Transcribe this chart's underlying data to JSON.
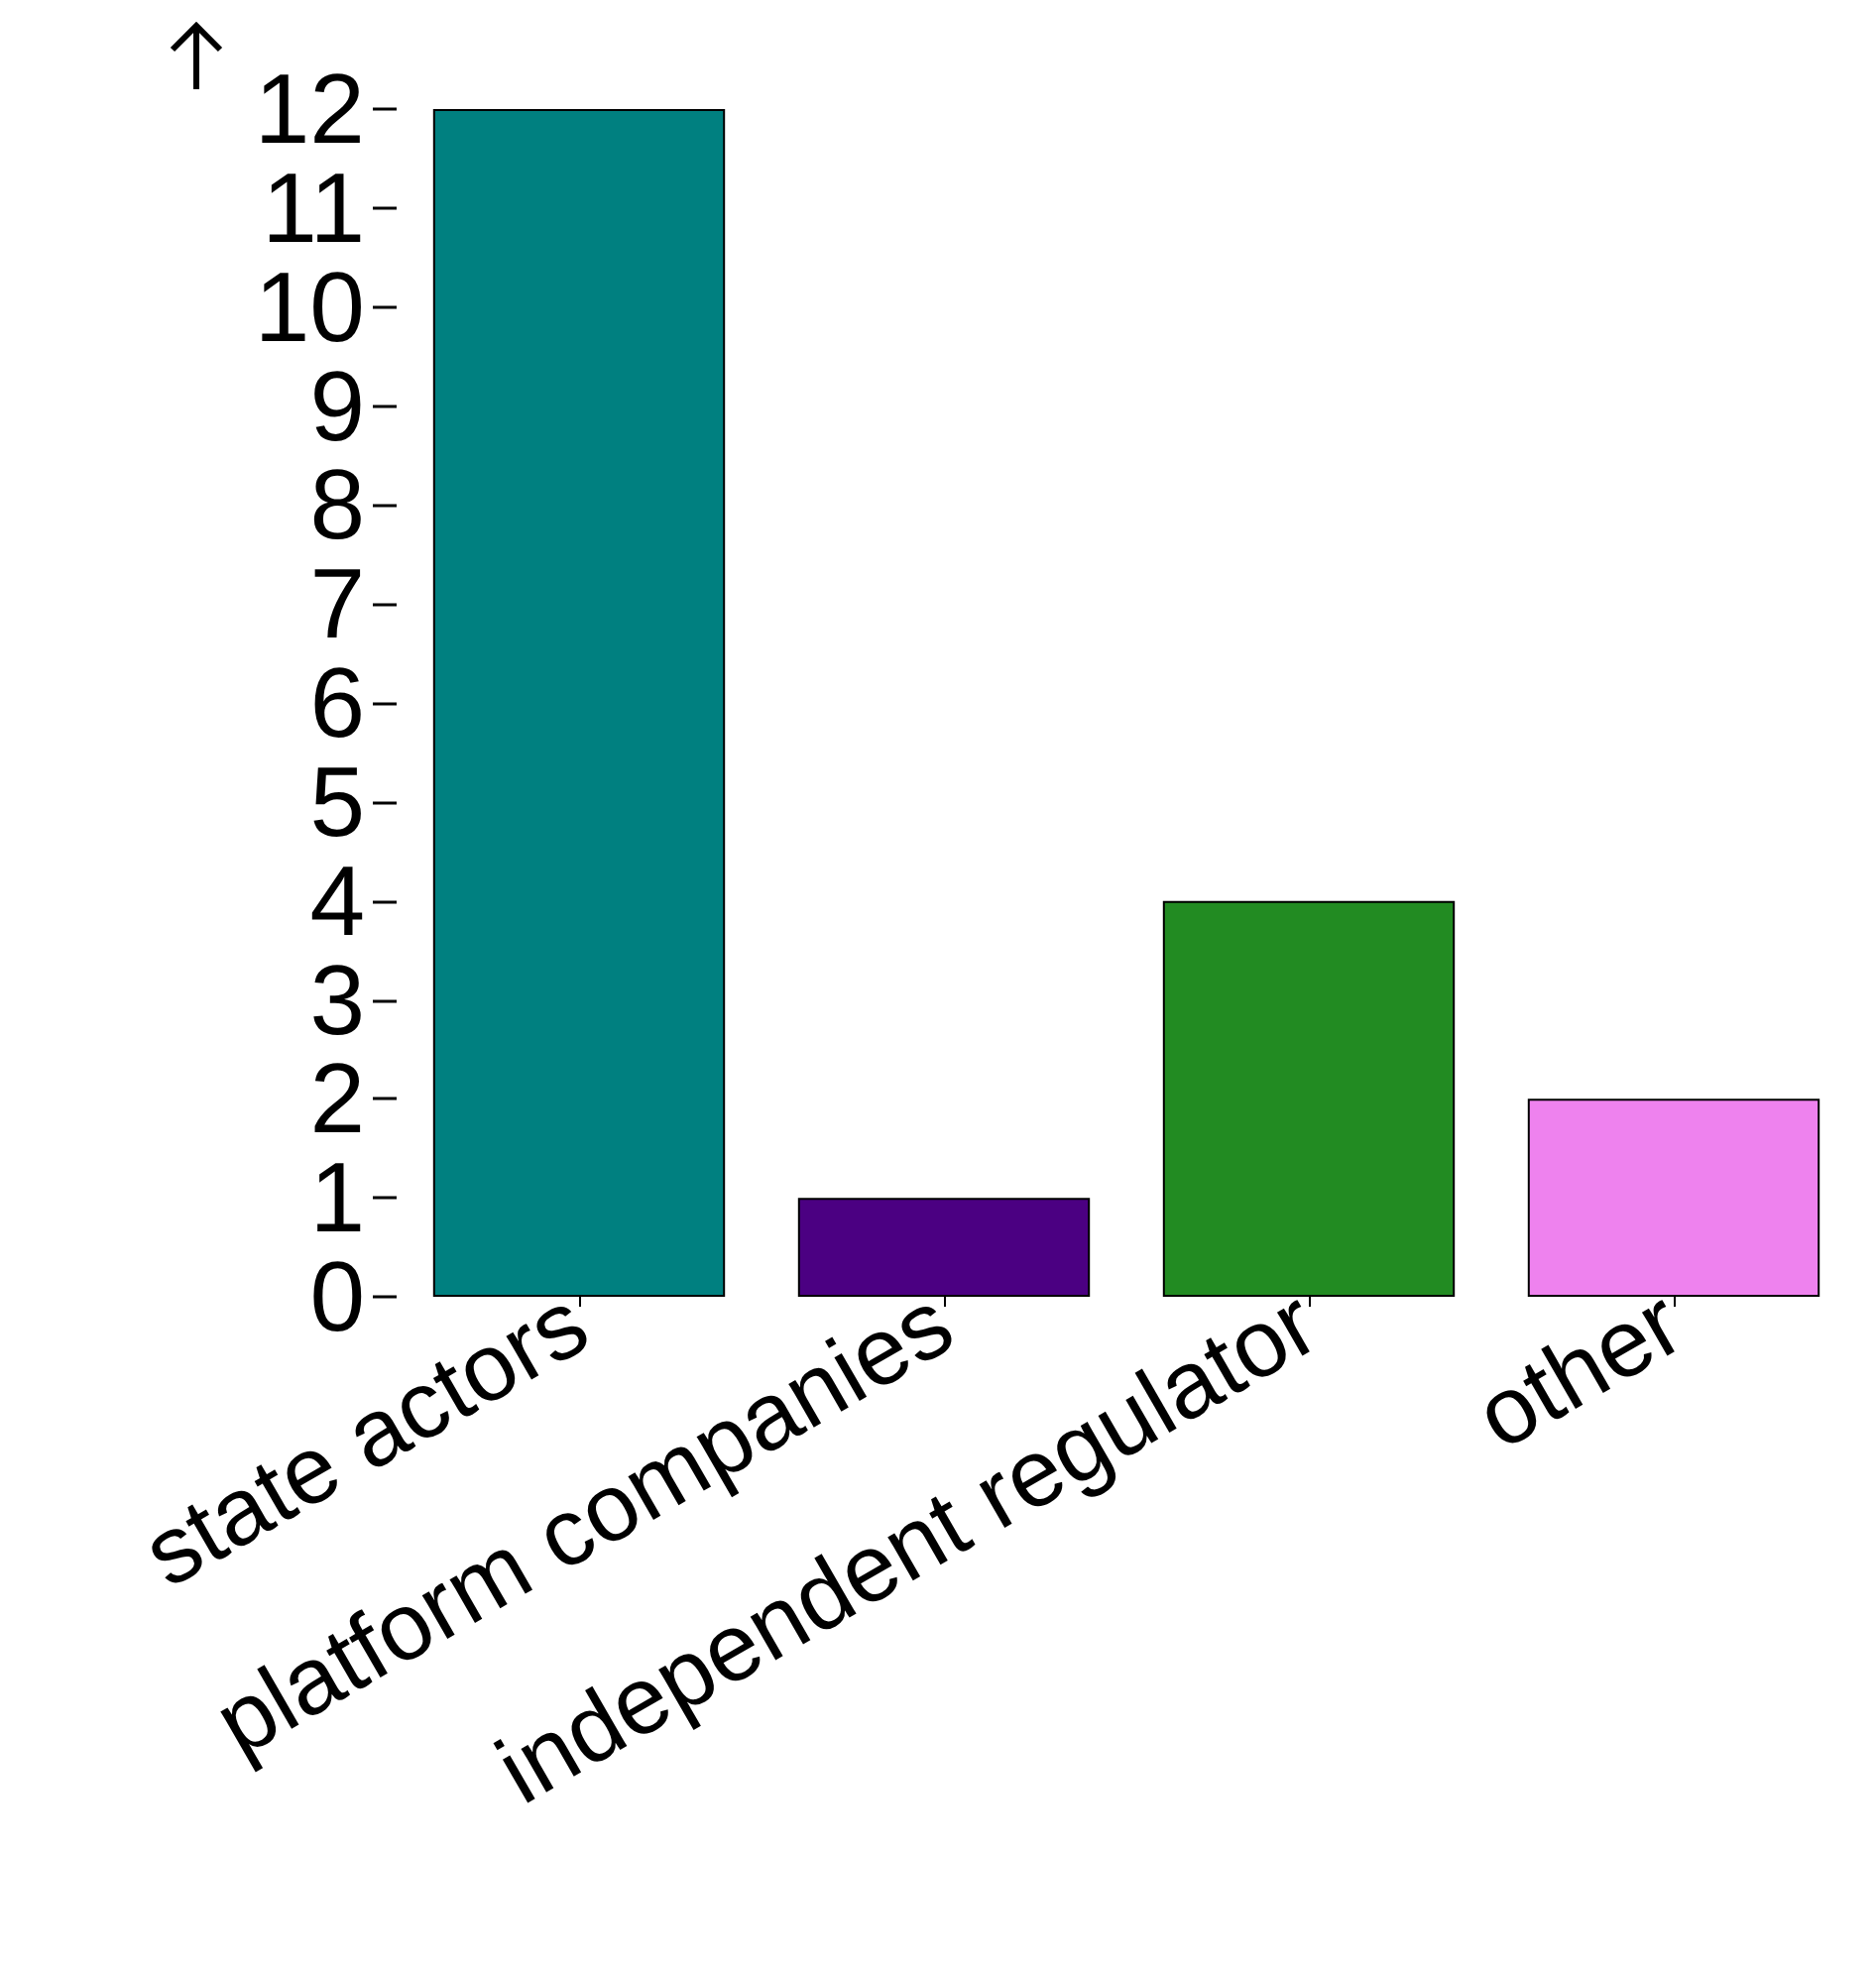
{
  "chart_data": {
    "type": "bar",
    "categories": [
      "state actors",
      "platform companies",
      "independent regulator",
      "other"
    ],
    "values": [
      12,
      1,
      4,
      2
    ],
    "colors": [
      "#008080",
      "#4b0082",
      "#228b22",
      "#ee82ee"
    ],
    "ylim": [
      0,
      12
    ],
    "yticks": [
      0,
      1,
      2,
      3,
      4,
      5,
      6,
      7,
      8,
      9,
      10,
      11,
      12
    ],
    "grid": false
  }
}
